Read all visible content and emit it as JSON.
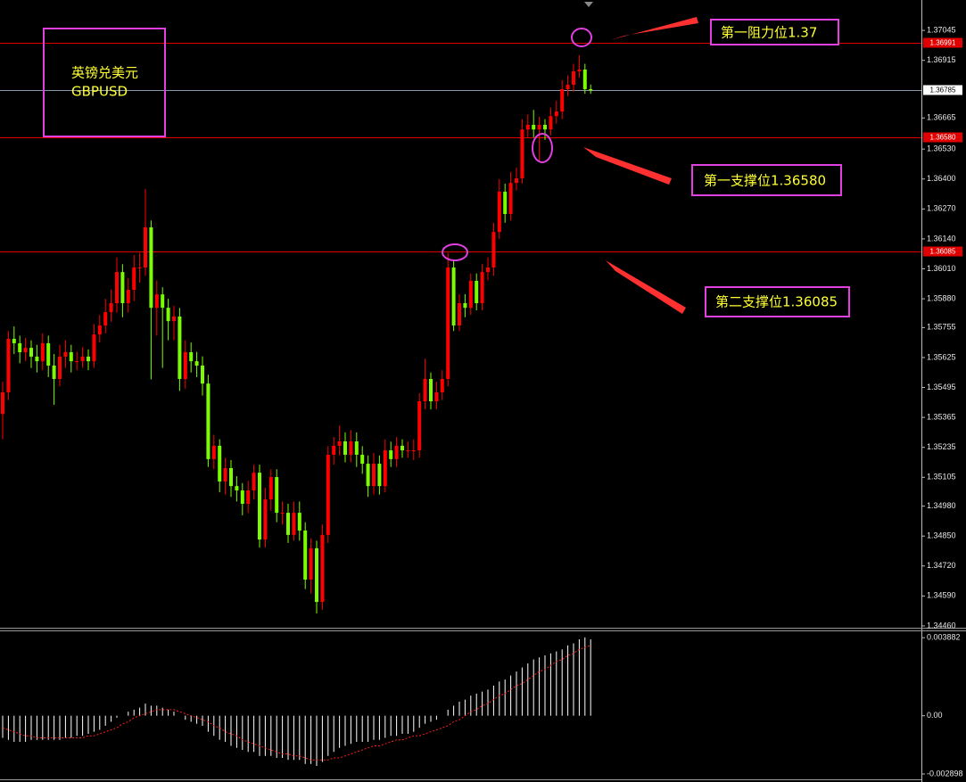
{
  "chart_data": [
    {
      "type": "candlestick",
      "symbol": {
        "name": "英镑兑美元",
        "code": "GBPUSD"
      },
      "annotations": [
        "第一阻力位1.37",
        "第一支撑位1.36580",
        "第二支撑位1.36085"
      ],
      "up_color": "#ff0000",
      "down_color": "#7cfc00",
      "ylim": [
        1.34452,
        1.37177
      ],
      "yticks": [
        1.37045,
        1.36915,
        1.36665,
        {
          "value": 1.3653,
          "label": "1.36530"
        },
        {
          "value": 1.364,
          "label": "1.36400"
        },
        {
          "value": 1.3627,
          "label": "1.36270"
        },
        {
          "value": 1.3614,
          "label": "1.36140"
        },
        {
          "value": 1.3601,
          "label": "1.36010"
        },
        {
          "value": 1.3588,
          "label": "1.35880"
        },
        1.35755,
        1.35625,
        1.35495,
        1.35365,
        1.35235,
        1.35105,
        {
          "value": 1.3498,
          "label": "1.34980"
        },
        {
          "value": 1.3485,
          "label": "1.34850"
        },
        {
          "value": 1.3472,
          "label": "1.34720"
        },
        {
          "value": 1.3459,
          "label": "1.34590"
        },
        {
          "value": 1.3446,
          "label": "1.34460"
        }
      ],
      "levels": [
        {
          "value": 1.36991,
          "color": "#e00000"
        },
        {
          "value": 1.3658,
          "label": "1.36580",
          "color": "#e00000"
        },
        {
          "value": 1.36085,
          "color": "#e00000"
        }
      ],
      "current_price": {
        "value": 1.36785,
        "color": "#8a9aaa"
      },
      "open": [
        1.3538,
        1.35474,
        1.35706,
        1.35687,
        1.35648,
        1.35667,
        1.35629,
        1.35609,
        1.35687,
        1.3559,
        1.35532,
        1.35629,
        1.35648,
        1.35609,
        1.35609,
        1.35629,
        1.35609,
        1.35725,
        1.35764,
        1.35822,
        1.35861,
        1.35996,
        1.35861,
        1.35919,
        1.36016,
        1.36016,
        1.3619,
        1.35841,
        1.35899,
        1.35841,
        1.35783,
        1.35803,
        1.35532,
        1.35648,
        1.35609,
        1.3559,
        1.35512,
        1.35184,
        1.35242,
        1.35087,
        1.35145,
        1.35067,
        1.35048,
        1.3499,
        1.35048,
        1.35125,
        1.34835,
        1.35009,
        1.35106,
        1.34951,
        1.34951,
        1.34855,
        1.34951,
        1.34874,
        1.34661,
        1.34797,
        1.34564,
        1.34855,
        1.35203,
        1.35242,
        1.35261,
        1.35203,
        1.35261,
        1.35203,
        1.35164,
        1.35067,
        1.35164,
        1.35067,
        1.35222,
        1.35184,
        1.35242,
        1.35222,
        1.35222,
        1.35222,
        1.35435,
        1.35532,
        1.35435,
        1.35474,
        1.35532,
        1.36016,
        1.35764,
        1.35861,
        1.35841,
        1.35958,
        1.35861,
        1.35996,
        1.36016,
        1.3617,
        1.36345,
        1.36248,
        1.36383,
        1.36403,
        1.36615,
        1.36635,
        1.36615,
        1.36635,
        1.36615,
        1.36673,
        1.36693,
        1.3679,
        1.36809,
        1.36867,
        1.36875,
        1.3679
      ],
      "high": [
        1.3552,
        1.3574,
        1.3576,
        1.3572,
        1.3571,
        1.357,
        1.3568,
        1.3573,
        1.3572,
        1.3564,
        1.3568,
        1.357,
        1.3568,
        1.3565,
        1.3567,
        1.3566,
        1.3577,
        1.3581,
        1.3588,
        1.3592,
        1.3606,
        1.3603,
        1.3597,
        1.3607,
        1.3608,
        1.36356,
        1.3622,
        1.3596,
        1.3593,
        1.3588,
        1.3585,
        1.3584,
        1.357,
        1.3569,
        1.3565,
        1.3563,
        1.3555,
        1.3529,
        1.3527,
        1.3519,
        1.3518,
        1.3511,
        1.3508,
        1.3509,
        1.3516,
        1.3516,
        1.3506,
        1.3514,
        1.3514,
        1.35,
        1.3499,
        1.35,
        1.35,
        1.3491,
        1.3484,
        1.3483,
        1.349,
        1.3524,
        1.3528,
        1.3533,
        1.353,
        1.3531,
        1.353,
        1.3524,
        1.352,
        1.3521,
        1.352,
        1.3527,
        1.3526,
        1.3528,
        1.3527,
        1.3526,
        1.3527,
        1.3547,
        1.3562,
        1.3556,
        1.3552,
        1.3557,
        1.3608,
        1.3605,
        1.359,
        1.359,
        1.3599,
        1.3599,
        1.3603,
        1.3606,
        1.3621,
        1.364,
        1.3638,
        1.3643,
        1.3645,
        1.3666,
        1.3668,
        1.367,
        1.3667,
        1.3666,
        1.3671,
        1.3674,
        1.3683,
        1.3685,
        1.369,
        1.36937,
        1.369,
        1.3681
      ],
      "low": [
        1.3527,
        1.3544,
        1.3564,
        1.356,
        1.3561,
        1.3558,
        1.3556,
        1.3557,
        1.3554,
        1.3542,
        1.355,
        1.3558,
        1.3556,
        1.3557,
        1.3558,
        1.3557,
        1.3558,
        1.3569,
        1.3573,
        1.3578,
        1.3582,
        1.358,
        1.3582,
        1.3587,
        1.3595,
        1.3598,
        1.3553,
        1.3572,
        1.3558,
        1.357,
        1.357,
        1.3548,
        1.3549,
        1.3556,
        1.3554,
        1.3546,
        1.3515,
        1.3514,
        1.3504,
        1.3503,
        1.3502,
        1.35,
        1.3494,
        1.3495,
        1.3501,
        1.348,
        1.348,
        1.3496,
        1.3491,
        1.349,
        1.3482,
        1.3483,
        1.3483,
        1.3462,
        1.346,
        1.34514,
        1.3453,
        1.3482,
        1.3516,
        1.352,
        1.3517,
        1.3517,
        1.3515,
        1.3512,
        1.3502,
        1.3503,
        1.3503,
        1.3504,
        1.3515,
        1.3515,
        1.3519,
        1.3519,
        1.3518,
        1.3519,
        1.354,
        1.354,
        1.354,
        1.3544,
        1.355,
        1.3574,
        1.3574,
        1.358,
        1.3581,
        1.3583,
        1.3583,
        1.3596,
        1.3598,
        1.3614,
        1.3621,
        1.3622,
        1.3635,
        1.3638,
        1.3658,
        1.3658,
        1.3648,
        1.3657,
        1.3659,
        1.3664,
        1.3666,
        1.3676,
        1.3678,
        1.3684,
        1.3677,
        1.3677
      ],
      "close": [
        1.35474,
        1.35706,
        1.35687,
        1.35648,
        1.35667,
        1.35629,
        1.35609,
        1.35687,
        1.3559,
        1.35532,
        1.35629,
        1.35648,
        1.35609,
        1.35609,
        1.35629,
        1.35609,
        1.35725,
        1.35764,
        1.35822,
        1.35861,
        1.35996,
        1.35861,
        1.35919,
        1.36016,
        1.36016,
        1.3619,
        1.35841,
        1.35899,
        1.35841,
        1.35783,
        1.35803,
        1.35532,
        1.35648,
        1.35609,
        1.3559,
        1.35512,
        1.35184,
        1.35242,
        1.35087,
        1.35145,
        1.35067,
        1.35048,
        1.3499,
        1.35048,
        1.35125,
        1.34835,
        1.35009,
        1.35106,
        1.34951,
        1.34951,
        1.34855,
        1.34951,
        1.34874,
        1.34661,
        1.34797,
        1.34564,
        1.34855,
        1.35203,
        1.35242,
        1.35261,
        1.35203,
        1.35261,
        1.35203,
        1.35164,
        1.35067,
        1.35164,
        1.35067,
        1.35222,
        1.35184,
        1.35242,
        1.35222,
        1.35222,
        1.35222,
        1.35435,
        1.35532,
        1.35435,
        1.35474,
        1.35532,
        1.36016,
        1.35764,
        1.35861,
        1.35841,
        1.35958,
        1.35861,
        1.35996,
        1.36016,
        1.3617,
        1.36345,
        1.36248,
        1.36383,
        1.36403,
        1.36615,
        1.36635,
        1.36615,
        1.36635,
        1.36615,
        1.36673,
        1.36693,
        1.3679,
        1.36809,
        1.36867,
        1.36875,
        1.3679,
        1.36785
      ]
    },
    {
      "type": "macd",
      "histogram_color": "#ffffff",
      "signal_color": "#ff2020",
      "ylim": [
        -0.00312,
        0.0042
      ],
      "yticks": [
        0.003882,
        {
          "value": 0,
          "label": "0.00"
        },
        -0.002898
      ],
      "histogram": [
        -0.0011,
        -0.0012,
        -0.0013,
        -0.0013,
        -0.0013,
        -0.0012,
        -0.0012,
        -0.0012,
        -0.0012,
        -0.0012,
        -0.0012,
        -0.0011,
        -0.0011,
        -0.001,
        -0.001,
        -0.0009,
        -0.0008,
        -0.0007,
        -0.0005,
        -0.0003,
        -0.0001,
        0,
        0.0002,
        0.0003,
        0.0004,
        0.0006,
        0.0005,
        0.0005,
        0.0004,
        0.0003,
        0.0002,
        0,
        -0.0002,
        -0.0003,
        -0.0004,
        -0.0005,
        -0.0008,
        -0.001,
        -0.0012,
        -0.0013,
        -0.0015,
        -0.0016,
        -0.0017,
        -0.0018,
        -0.0018,
        -0.002,
        -0.002,
        -0.002,
        -0.0021,
        -0.0021,
        -0.0022,
        -0.0022,
        -0.0022,
        -0.0024,
        -0.0024,
        -0.0025,
        -0.0023,
        -0.002,
        -0.0018,
        -0.0016,
        -0.0015,
        -0.0014,
        -0.0013,
        -0.0013,
        -0.0013,
        -0.0012,
        -0.0012,
        -0.0011,
        -0.001,
        -0.001,
        -0.0009,
        -0.0009,
        -0.0008,
        -0.0006,
        -0.0004,
        -0.0003,
        -0.0002,
        0,
        0.0003,
        0.0005,
        0.0007,
        0.0008,
        0.001,
        0.0011,
        0.0012,
        0.0013,
        0.0015,
        0.0017,
        0.0018,
        0.002,
        0.0022,
        0.0024,
        0.0026,
        0.0028,
        0.0029,
        0.003,
        0.0031,
        0.0032,
        0.0033,
        0.0035,
        0.0036,
        0.0038,
        0.0039,
        0.0038
      ],
      "signal": [
        -0.0006,
        -0.0007,
        -0.0008,
        -0.0009,
        -0.001,
        -0.001,
        -0.0011,
        -0.0011,
        -0.0011,
        -0.0011,
        -0.0011,
        -0.0011,
        -0.0011,
        -0.0011,
        -0.0011,
        -0.001,
        -0.001,
        -0.0009,
        -0.0008,
        -0.0007,
        -0.0006,
        -0.0004,
        -0.0003,
        -0.0001,
        0,
        0.0001,
        0.0002,
        0.0003,
        0.0003,
        0.0003,
        0.0003,
        0.0002,
        0.0001,
        0,
        -0.0001,
        -0.0002,
        -0.0003,
        -0.0005,
        -0.0006,
        -0.0008,
        -0.0009,
        -0.001,
        -0.0012,
        -0.0013,
        -0.0014,
        -0.0015,
        -0.0016,
        -0.0017,
        -0.0018,
        -0.0019,
        -0.0019,
        -0.002,
        -0.002,
        -0.0021,
        -0.0022,
        -0.0022,
        -0.0022,
        -0.0022,
        -0.0021,
        -0.0021,
        -0.002,
        -0.0019,
        -0.0018,
        -0.0017,
        -0.0016,
        -0.0015,
        -0.0015,
        -0.0014,
        -0.0013,
        -0.0012,
        -0.0012,
        -0.0011,
        -0.001,
        -0.001,
        -0.0009,
        -0.0008,
        -0.0007,
        -0.0006,
        -0.0005,
        -0.0003,
        -0.0002,
        0,
        0.0002,
        0.0003,
        0.0005,
        0.0006,
        0.0008,
        0.001,
        0.0011,
        0.0013,
        0.0015,
        0.0016,
        0.0018,
        0.002,
        0.0022,
        0.0023,
        0.0025,
        0.0027,
        0.0028,
        0.003,
        0.0031,
        0.0033,
        0.0034,
        0.0035
      ]
    }
  ]
}
